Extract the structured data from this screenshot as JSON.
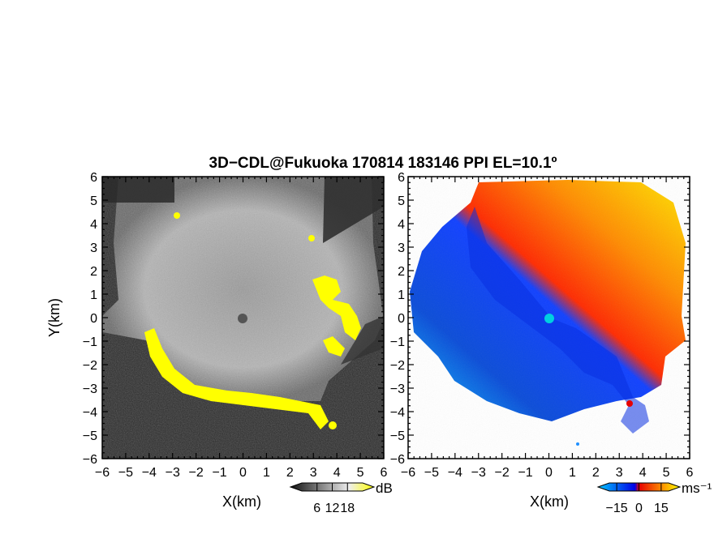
{
  "figure": {
    "title": "3D−CDL@Fukuoka 170814 183146 PPI EL=10.1º"
  },
  "chart_data": [
    {
      "id": "left",
      "type": "heatmap",
      "title": "",
      "xlabel": "X(km)",
      "ylabel": "Y(km)",
      "xlim": [
        -6,
        6
      ],
      "ylim": [
        -6,
        6
      ],
      "xticks": [
        "−6",
        "−5",
        "−4",
        "−3",
        "−2",
        "−1",
        "0",
        "1",
        "2",
        "3",
        "4",
        "5",
        "6"
      ],
      "yticks": [
        "−6",
        "−5",
        "−4",
        "−3",
        "−2",
        "−1",
        "0",
        "1",
        "2",
        "3",
        "4",
        "5",
        "6"
      ],
      "colorbar": {
        "label": "dB",
        "ticks": [
          "6",
          "12",
          "18"
        ],
        "range": [
          0,
          24
        ],
        "colors": [
          "#111111",
          "#ffffff",
          "#ffff00"
        ]
      },
      "grid": false
    },
    {
      "id": "right",
      "type": "heatmap",
      "title": "",
      "xlabel": "X(km)",
      "ylabel": "",
      "xlim": [
        -6,
        6
      ],
      "ylim": [
        -6,
        6
      ],
      "xticks": [
        "−6",
        "−5",
        "−4",
        "−3",
        "−2",
        "−1",
        "0",
        "1",
        "2",
        "3",
        "4",
        "5",
        "6"
      ],
      "yticks": [
        "−6",
        "−5",
        "−4",
        "−3",
        "−2",
        "−1",
        "0",
        "1",
        "2",
        "3",
        "4",
        "5",
        "6"
      ],
      "colorbar": {
        "label": "ms⁻¹",
        "ticks": [
          "−15",
          "0",
          "15"
        ],
        "range": [
          -20,
          20
        ],
        "colors": [
          "#00c8ff",
          "#0000e6",
          "#e60000",
          "#ffff00"
        ]
      },
      "grid": false
    }
  ]
}
